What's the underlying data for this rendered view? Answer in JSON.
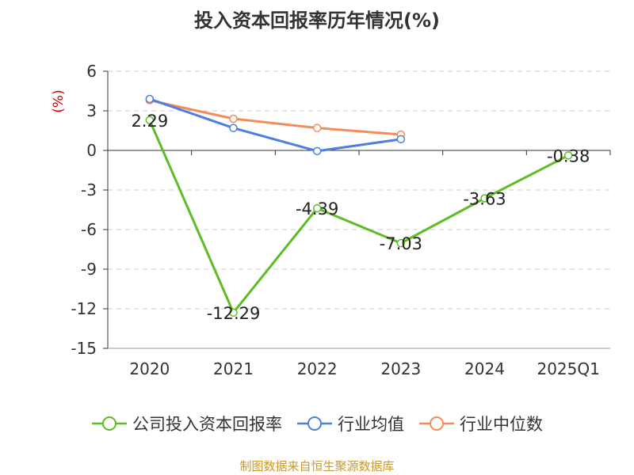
{
  "title": "投入资本回报率历年情况(%)",
  "source": "制图数据来自恒生聚源数据库",
  "chart_data": {
    "type": "line",
    "title": "投入资本回报率历年情况(%)",
    "ylabel": "(%)",
    "categories": [
      "2020",
      "2021",
      "2022",
      "2023",
      "2024",
      "2025Q1"
    ],
    "ylim": [
      -15,
      6
    ],
    "yticks": [
      6,
      3,
      0,
      -3,
      -6,
      -9,
      -12,
      -15
    ],
    "grid": true,
    "legend_position": "bottom",
    "series": [
      {
        "name": "公司投入资本回报率",
        "color": "#5dbd26",
        "values": [
          2.29,
          -12.29,
          -4.39,
          -7.03,
          -3.63,
          -0.38
        ],
        "labels": [
          "2.29",
          "-12.29",
          "-4.39",
          "-7.03",
          "-3.63",
          "-0.38"
        ]
      },
      {
        "name": "行业均值",
        "color": "#4e7ede",
        "values": [
          3.9,
          1.7,
          -0.05,
          0.85,
          null,
          null
        ]
      },
      {
        "name": "行业中位数",
        "color": "#f48c5a",
        "values": [
          3.8,
          2.4,
          1.7,
          1.2,
          null,
          null
        ]
      }
    ]
  }
}
